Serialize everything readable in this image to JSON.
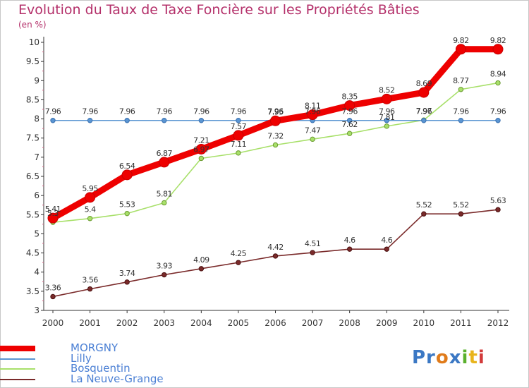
{
  "title": "Evolution du Taux de Taxe Foncière sur les Propriétés Bâties",
  "unit": "(en %)",
  "logo": {
    "parts": [
      "Pr",
      "o",
      "x",
      "i",
      "t",
      "i"
    ],
    "colors": [
      "#3b78c4",
      "#e07b1a",
      "#3b78c4",
      "#5ab02d",
      "#e8b41c",
      "#d23a3a"
    ]
  },
  "chart_data": {
    "type": "line",
    "title": "Evolution du Taux de Taxe Foncière sur les Propriétés Bâties",
    "ylabel": "(en %)",
    "xlabel": "",
    "x": [
      "2000",
      "2001",
      "2002",
      "2003",
      "2004",
      "2005",
      "2006",
      "2007",
      "2008",
      "2009",
      "2010",
      "2011",
      "2012"
    ],
    "ylim": [
      3,
      10
    ],
    "yticks": [
      "3",
      "3.5",
      "4",
      "4.5",
      "5",
      "5.5",
      "6",
      "6.5",
      "7",
      "7.5",
      "8",
      "8.5",
      "9",
      "9.5",
      "10"
    ],
    "grid": false,
    "legend": "bottom-left",
    "series": [
      {
        "name": "MORGNY",
        "color": "#ee0000",
        "values": [
          5.41,
          5.95,
          6.54,
          6.87,
          7.21,
          7.57,
          7.95,
          8.11,
          8.35,
          8.52,
          8.69,
          9.82,
          9.82
        ],
        "labels": [
          "5.41",
          "5.95",
          "6.54",
          "6.87",
          "7.21",
          "7.57",
          "7.95",
          "8.11",
          "8.35",
          "8.52",
          "8.69",
          "9.82",
          "9.82"
        ]
      },
      {
        "name": "Lilly",
        "color": "#5a95d2",
        "values": [
          7.96,
          7.96,
          7.96,
          7.96,
          7.96,
          7.96,
          7.96,
          7.96,
          7.96,
          7.96,
          7.96,
          7.96,
          7.96
        ],
        "labels": [
          "7.96",
          "7.96",
          "7.96",
          "7.96",
          "7.96",
          "7.96",
          "7.96",
          "7.96",
          "7.96",
          "7.96",
          "7.96",
          "7.96",
          "7.96"
        ]
      },
      {
        "name": "Bosquentin",
        "color": "#a8e06a",
        "values": [
          5.3,
          5.4,
          5.53,
          5.81,
          6.97,
          7.11,
          7.32,
          7.47,
          7.62,
          7.81,
          7.97,
          8.77,
          8.94
        ],
        "labels": [
          "5.3",
          "5.4",
          "5.53",
          "5.81",
          "6.97",
          "7.11",
          "7.32",
          "7.47",
          "7.62",
          "7.81",
          "7.97",
          "8.77",
          "8.94"
        ]
      },
      {
        "name": "La Neuve-Grange",
        "color": "#7a2a2a",
        "values": [
          3.36,
          3.56,
          3.74,
          3.93,
          4.09,
          4.25,
          4.42,
          4.51,
          4.6,
          4.6,
          5.52,
          5.52,
          5.63
        ],
        "labels": [
          "3.36",
          "3.56",
          "3.74",
          "3.93",
          "4.09",
          "4.25",
          "4.42",
          "4.51",
          "4.6",
          "4.6",
          "5.52",
          "5.52",
          "5.63"
        ]
      }
    ]
  }
}
